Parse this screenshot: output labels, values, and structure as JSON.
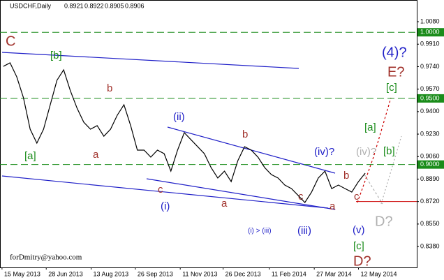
{
  "chart_data": {
    "type": "line",
    "title": "USDCHF,Daily",
    "header_values": [
      0.8921,
      0.8922,
      0.8905,
      0.8906
    ],
    "watermark": "forDmitry@yahoo.com",
    "color": "#000000",
    "values": [
      0.9742,
      0.9769,
      0.9663,
      0.9505,
      0.9267,
      0.9162,
      0.9267,
      0.9452,
      0.9637,
      0.9716,
      0.9558,
      0.9426,
      0.932,
      0.9267,
      0.9294,
      0.9214,
      0.9267,
      0.9373,
      0.9452,
      0.9294,
      0.9109,
      0.9109,
      0.9056,
      0.9109,
      0.9082,
      0.895,
      0.9109,
      0.9241,
      0.9188,
      0.9135,
      0.9082,
      0.8977,
      0.8898,
      0.895,
      0.8871,
      0.903,
      0.9135,
      0.9109,
      0.9056,
      0.8977,
      0.8924,
      0.8898,
      0.8845,
      0.8818,
      0.8766,
      0.8713,
      0.8792,
      0.8898,
      0.895,
      0.8818,
      0.8845,
      0.8818,
      0.8792,
      0.8871,
      0.8935
    ],
    "xlim": [
      -0.5,
      61.7
    ],
    "xticks": [
      {
        "value": -0.2,
        "label": "15 May 2013"
      },
      {
        "value": 6.4,
        "label": "28 Jun 2013"
      },
      {
        "value": 13.1,
        "label": "13 Aug 2013"
      },
      {
        "value": 19.7,
        "label": "26 Sep 2013"
      },
      {
        "value": 26.4,
        "label": "11 Nov 2013"
      },
      {
        "value": 32.8,
        "label": "26 Dec 2013"
      },
      {
        "value": 39.7,
        "label": "11 Feb 2014"
      },
      {
        "value": 46.4,
        "label": "27 Mar 2014"
      },
      {
        "value": 53.0,
        "label": "12 May 2014"
      }
    ],
    "ylim": [
      0.8222,
      1.0244
    ],
    "yticks": [
      {
        "value": 1.008,
        "label": "1.0080"
      },
      {
        "value": 0.991,
        "label": "0.9910"
      },
      {
        "value": 0.974,
        "label": "0.9740"
      },
      {
        "value": 0.957,
        "label": "0.9570"
      },
      {
        "value": 0.94,
        "label": "0.9400"
      },
      {
        "value": 0.923,
        "label": "0.9230"
      },
      {
        "value": 0.906,
        "label": "0.9060"
      },
      {
        "value": 0.889,
        "label": "0.8890"
      },
      {
        "value": 0.872,
        "label": "0.8720"
      },
      {
        "value": 0.855,
        "label": "0.8550"
      },
      {
        "value": 0.838,
        "label": "0.8380"
      }
    ],
    "levels": [
      {
        "value": 1.0,
        "label": "1.0000",
        "color": "#1a8c1a",
        "style": "dashed"
      },
      {
        "value": 0.95,
        "label": "0.9500",
        "color": "#1a8c1a",
        "style": "dashed"
      },
      {
        "value": 0.9,
        "label": "0.9000",
        "color": "#1a8c1a",
        "style": "dashed"
      },
      {
        "value": 0.872,
        "color": "#cc0000",
        "style": "solid"
      }
    ],
    "grid": false,
    "annotations": [
      "C",
      "[b]",
      "b",
      "[a]",
      "a",
      "(ii)",
      "b",
      "c",
      "(i)",
      "a",
      "c",
      "a",
      "(iii)",
      "(i) > (iii)",
      "(iv)?",
      "(iv)?",
      "[b]",
      "b",
      "c",
      "(v)",
      "[c]",
      "D?",
      "D?",
      "[a]",
      "[c]",
      "E?",
      "(4)?"
    ]
  }
}
